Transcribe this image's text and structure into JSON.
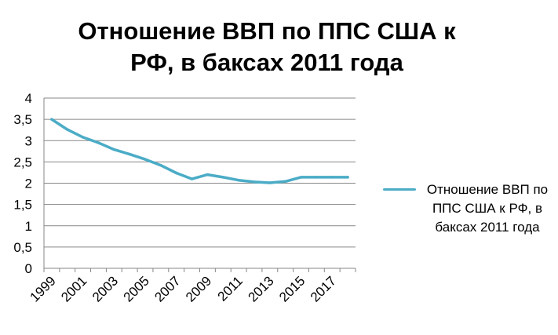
{
  "chart_data": {
    "type": "line",
    "title": "Отношение ВВП по ППС США к РФ,  в баксах 2011 года",
    "title_lines": [
      "Отношение ВВП по ППС США к",
      "РФ,  в баксах 2011 года"
    ],
    "xlabel": "",
    "ylabel": "",
    "x": [
      1999,
      2000,
      2001,
      2002,
      2003,
      2004,
      2005,
      2006,
      2007,
      2008,
      2009,
      2010,
      2011,
      2012,
      2013,
      2014,
      2015,
      2016,
      2017,
      2018
    ],
    "x_tick_labels": [
      "1999",
      "2001",
      "2003",
      "2005",
      "2007",
      "2009",
      "2011",
      "2013",
      "2015",
      "2017"
    ],
    "y_tick_labels": [
      "0",
      "0,5",
      "1",
      "1,5",
      "2",
      "2,5",
      "3",
      "3,5",
      "4"
    ],
    "ylim": [
      0,
      4
    ],
    "grid": true,
    "legend_position": "right",
    "series": [
      {
        "name": "Отношение ВВП по ППС США к РФ,  в баксах 2011 года",
        "color": "#4bacc6",
        "values": [
          3.5,
          3.26,
          3.08,
          2.95,
          2.79,
          2.68,
          2.56,
          2.42,
          2.24,
          2.1,
          2.2,
          2.14,
          2.07,
          2.03,
          2.01,
          2.04,
          2.14,
          2.14,
          2.14,
          2.14
        ]
      }
    ]
  }
}
